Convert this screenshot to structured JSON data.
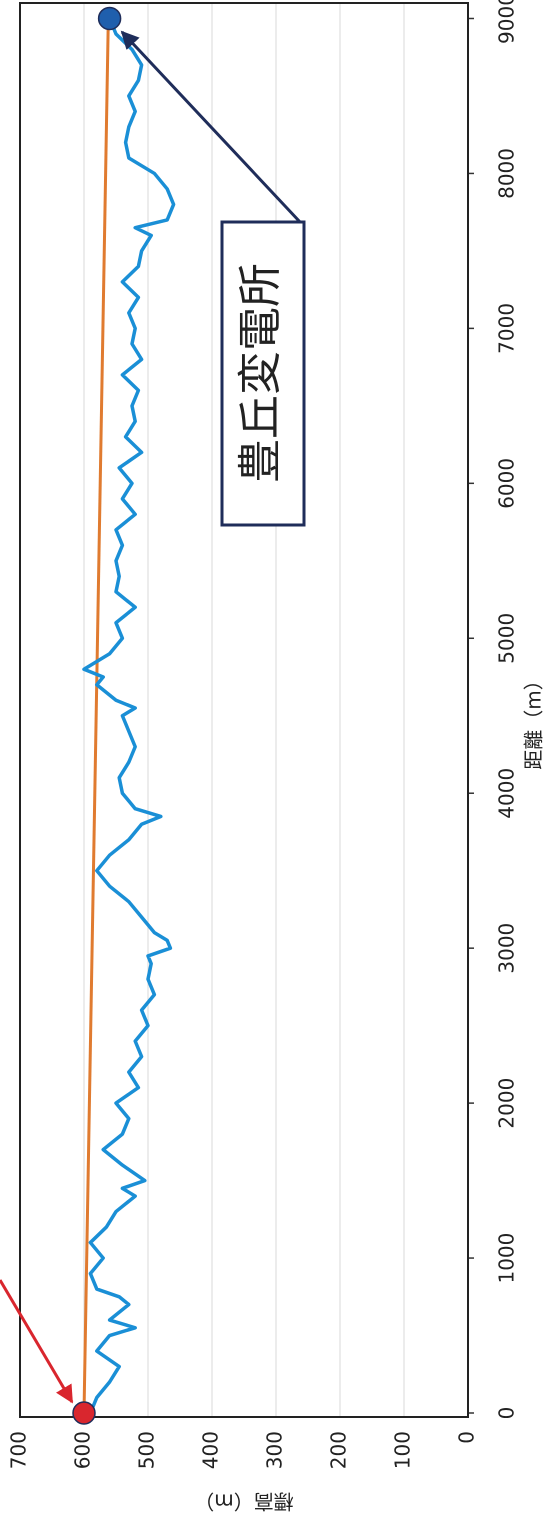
{
  "chart_data": {
    "type": "line",
    "x_label": "距離（m）",
    "y_label": "標高（m）",
    "xlim": [
      0,
      9100
    ],
    "xticks": [
      0,
      1000,
      2000,
      3000,
      4000,
      5000,
      6000,
      7000,
      8000,
      9000
    ],
    "ylim": [
      0,
      700
    ],
    "yticks": [
      0,
      100,
      200,
      300,
      400,
      500,
      600,
      700
    ],
    "grid": true,
    "series": [
      {
        "color": "#1a8fd6",
        "x": [
          0,
          100,
          200,
          300,
          400,
          500,
          550,
          600,
          700,
          750,
          800,
          900,
          1000,
          1100,
          1200,
          1300,
          1400,
          1450,
          1500,
          1600,
          1700,
          1800,
          1900,
          2000,
          2100,
          2200,
          2300,
          2400,
          2500,
          2600,
          2700,
          2800,
          2900,
          2950,
          3000,
          3050,
          3100,
          3200,
          3300,
          3400,
          3500,
          3600,
          3700,
          3800,
          3850,
          3900,
          4000,
          4100,
          4200,
          4300,
          4400,
          4500,
          4550,
          4600,
          4700,
          4750,
          4800,
          4900,
          5000,
          5100,
          5200,
          5300,
          5400,
          5500,
          5600,
          5700,
          5800,
          5900,
          6000,
          6100,
          6200,
          6300,
          6400,
          6500,
          6600,
          6700,
          6800,
          6900,
          7000,
          7100,
          7200,
          7300,
          7400,
          7500,
          7600,
          7650,
          7700,
          7800,
          7900,
          8000,
          8100,
          8200,
          8300,
          8400,
          8500,
          8600,
          8700,
          8800,
          8900,
          9000
        ],
        "values": [
          590,
          580,
          560,
          545,
          580,
          560,
          520,
          560,
          530,
          545,
          580,
          590,
          570,
          590,
          565,
          550,
          520,
          540,
          505,
          540,
          570,
          540,
          530,
          550,
          515,
          530,
          510,
          520,
          500,
          510,
          490,
          500,
          495,
          500,
          465,
          470,
          490,
          510,
          530,
          560,
          580,
          560,
          530,
          510,
          480,
          520,
          540,
          545,
          530,
          520,
          530,
          540,
          520,
          550,
          580,
          570,
          600,
          560,
          540,
          550,
          520,
          550,
          545,
          550,
          540,
          550,
          520,
          540,
          525,
          545,
          510,
          535,
          520,
          525,
          515,
          540,
          510,
          525,
          520,
          530,
          515,
          540,
          515,
          510,
          495,
          520,
          470,
          460,
          470,
          490,
          530,
          535,
          530,
          520,
          530,
          515,
          510,
          525,
          550,
          560
        ]
      },
      {
        "color": "#e07b30",
        "x": [
          0,
          9000
        ],
        "values": [
          600,
          562
        ]
      }
    ],
    "markers": [
      {
        "x": 0,
        "value": 600,
        "color": "#d9262e"
      },
      {
        "x": 9000,
        "value": 560,
        "color": "#1f5fad"
      }
    ],
    "annotation": "豊丘変電所"
  }
}
